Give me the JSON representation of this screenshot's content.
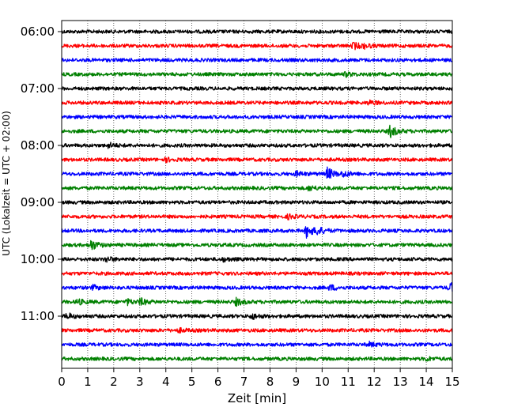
{
  "chart_data": {
    "type": "line",
    "title": "",
    "xlabel": "Zeit  [min]",
    "ylabel": "UTC (Lokalzeit = UTC + 02:00)",
    "xlim": [
      0,
      15
    ],
    "xticks": [
      0,
      1,
      2,
      3,
      4,
      5,
      6,
      7,
      8,
      9,
      10,
      11,
      12,
      13,
      14,
      15
    ],
    "grid": "vertical dotted at each minute",
    "row_interval_minutes": 15,
    "yticks": [
      "06:00",
      "07:00",
      "08:00",
      "09:00",
      "10:00",
      "11:00"
    ],
    "colors": [
      "#000000",
      "#ff0000",
      "#0000ff",
      "#008000"
    ],
    "series": [
      {
        "start": "06:00",
        "color": "#000000",
        "events": []
      },
      {
        "start": "06:15",
        "color": "#ff0000",
        "events": [
          {
            "t": 11.2,
            "amp": 0.5
          },
          {
            "t": 11.6,
            "amp": 0.25
          }
        ]
      },
      {
        "start": "06:30",
        "color": "#0000ff",
        "events": []
      },
      {
        "start": "06:45",
        "color": "#008000",
        "events": [
          {
            "t": 10.9,
            "amp": 0.3
          }
        ]
      },
      {
        "start": "07:00",
        "color": "#000000",
        "events": []
      },
      {
        "start": "07:15",
        "color": "#ff0000",
        "events": [
          {
            "t": 11.8,
            "amp": 0.3
          }
        ]
      },
      {
        "start": "07:30",
        "color": "#0000ff",
        "events": []
      },
      {
        "start": "07:45",
        "color": "#008000",
        "events": [
          {
            "t": 12.6,
            "amp": 0.9
          }
        ]
      },
      {
        "start": "08:00",
        "color": "#000000",
        "events": [
          {
            "t": 1.8,
            "amp": 0.35
          }
        ]
      },
      {
        "start": "08:15",
        "color": "#ff0000",
        "events": [
          {
            "t": 4.0,
            "amp": 0.25
          }
        ]
      },
      {
        "start": "08:30",
        "color": "#0000ff",
        "events": [
          {
            "t": 9.0,
            "amp": 0.35
          },
          {
            "t": 10.2,
            "amp": 0.9
          },
          {
            "t": 10.8,
            "amp": 0.4
          }
        ]
      },
      {
        "start": "08:45",
        "color": "#008000",
        "events": [
          {
            "t": 9.5,
            "amp": 0.35
          }
        ]
      },
      {
        "start": "09:00",
        "color": "#000000",
        "events": []
      },
      {
        "start": "09:15",
        "color": "#ff0000",
        "events": [
          {
            "t": 8.7,
            "amp": 0.3
          }
        ]
      },
      {
        "start": "09:30",
        "color": "#0000ff",
        "events": [
          {
            "t": 9.4,
            "amp": 1.0
          },
          {
            "t": 9.8,
            "amp": 0.5
          }
        ]
      },
      {
        "start": "09:45",
        "color": "#008000",
        "events": [
          {
            "t": 1.1,
            "amp": 0.85
          }
        ]
      },
      {
        "start": "10:00",
        "color": "#000000",
        "events": [
          {
            "t": 1.7,
            "amp": 0.35
          },
          {
            "t": 6.2,
            "amp": 0.25
          }
        ]
      },
      {
        "start": "10:15",
        "color": "#ff0000",
        "events": []
      },
      {
        "start": "10:30",
        "color": "#0000ff",
        "events": [
          {
            "t": 1.2,
            "amp": 0.3
          },
          {
            "t": 10.3,
            "amp": 0.4
          },
          {
            "t": 14.9,
            "amp": 0.75
          }
        ]
      },
      {
        "start": "10:45",
        "color": "#008000",
        "events": [
          {
            "t": 0.6,
            "amp": 0.4
          },
          {
            "t": 2.5,
            "amp": 0.4
          },
          {
            "t": 3.0,
            "amp": 0.5
          },
          {
            "t": 6.7,
            "amp": 0.5
          }
        ]
      },
      {
        "start": "11:00",
        "color": "#000000",
        "events": [
          {
            "t": 0.2,
            "amp": 0.4
          },
          {
            "t": 7.3,
            "amp": 0.4
          }
        ]
      },
      {
        "start": "11:15",
        "color": "#ff0000",
        "events": [
          {
            "t": 4.5,
            "amp": 0.25
          }
        ]
      },
      {
        "start": "11:30",
        "color": "#0000ff",
        "events": [
          {
            "t": 11.8,
            "amp": 0.3
          }
        ]
      },
      {
        "start": "11:45",
        "color": "#008000",
        "events": [
          {
            "t": 14.0,
            "amp": 0.25
          }
        ]
      }
    ]
  }
}
